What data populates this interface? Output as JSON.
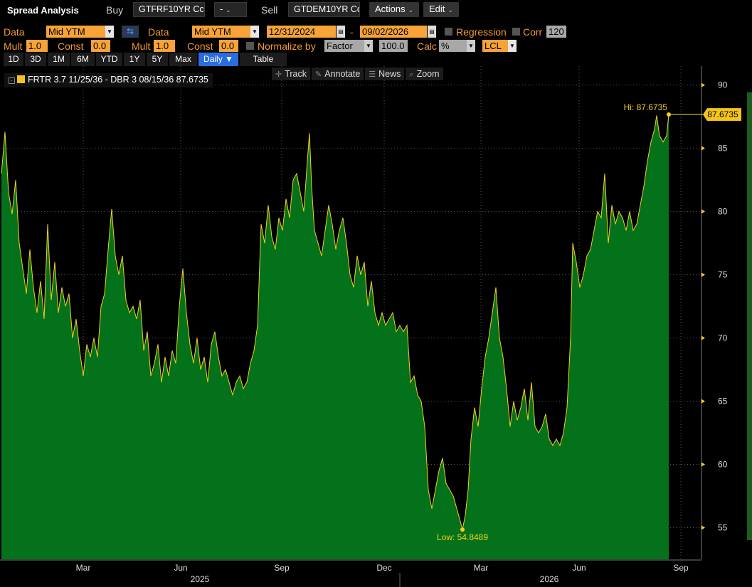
{
  "header": {
    "title": "Spread Analysis",
    "buy_label": "Buy",
    "buy_ticker": "GTFRF10YR Cc",
    "op_value": "-",
    "sell_label": "Sell",
    "sell_ticker": "GTDEM10YR Cc",
    "actions_label": "Actions",
    "edit_label": "Edit"
  },
  "settings": {
    "data_label_1": "Data",
    "data_value_1": "Mid YTM",
    "data_label_2": "Data",
    "data_value_2": "Mid YTM",
    "start_date": "12/31/2024",
    "date_sep": "-",
    "end_date": "09/02/2026",
    "regression_label": "Regression",
    "corr_label": "Corr",
    "corr_value": "120",
    "mult_label_1": "Mult",
    "mult_value_1": "1.0",
    "const_label_1": "Const",
    "const_value_1": "0.0",
    "mult_label_2": "Mult",
    "mult_value_2": "1.0",
    "const_label_2": "Const",
    "const_value_2": "0.0",
    "normalize_label": "Normalize by",
    "normalize_value": "Factor",
    "factor_value": "100.0",
    "calc_label": "Calc",
    "calc_value": "%",
    "lcl_value": "LCL"
  },
  "timeframes": [
    "1D",
    "3D",
    "1M",
    "6M",
    "YTD",
    "1Y",
    "5Y",
    "Max",
    "Daily ▼",
    "Table"
  ],
  "active_timeframe": "Daily ▼",
  "chart_tools": [
    {
      "icon": "crosshair-icon",
      "glyph": "✛",
      "label": "Track"
    },
    {
      "icon": "pencil-icon",
      "glyph": "✎",
      "label": "Annotate"
    },
    {
      "icon": "news-icon",
      "glyph": "☰",
      "label": "News"
    },
    {
      "icon": "zoom-icon",
      "glyph": "⌕",
      "label": "Zoom"
    }
  ],
  "legend": {
    "toggle": "-",
    "text": "FRTR 3.7 11/25/36 - DBR 3 08/15/36 87.6735"
  },
  "colors": {
    "area_fill": "#04721a",
    "line": "#f5d020",
    "accent_orange": "#f7a338",
    "active_tab": "#2a6de0"
  },
  "chart_data": {
    "type": "area",
    "title": "",
    "series": [
      {
        "name": "FRTR 3.7 11/25/36 - DBR 3 08/15/36",
        "last": 87.6735
      }
    ],
    "ylim": [
      52.5,
      91.5
    ],
    "y_ticks": [
      "90",
      "85",
      "80",
      "75",
      "70",
      "65",
      "60",
      "55"
    ],
    "x_month_labels": [
      "Mar",
      "Jun",
      "Sep",
      "Dec",
      "Mar",
      "Jun",
      "Sep"
    ],
    "x_year_labels": [
      "2025",
      "2026"
    ],
    "hi_label": "Hi: 87.6735",
    "low_label": "Low: 54.8489",
    "last_value_label": "87.6735",
    "hi": 87.6735,
    "low": 54.8489,
    "points": [
      [
        0,
        83.0
      ],
      [
        5,
        86.3
      ],
      [
        10,
        81.5
      ],
      [
        15,
        79.8
      ],
      [
        20,
        82.5
      ],
      [
        25,
        77.5
      ],
      [
        30,
        75.5
      ],
      [
        35,
        73.5
      ],
      [
        40,
        77.0
      ],
      [
        45,
        74.0
      ],
      [
        50,
        72.0
      ],
      [
        55,
        74.5
      ],
      [
        60,
        71.5
      ],
      [
        65,
        79.0
      ],
      [
        70,
        73.0
      ],
      [
        75,
        76.0
      ],
      [
        80,
        72.0
      ],
      [
        85,
        74.0
      ],
      [
        90,
        72.5
      ],
      [
        95,
        73.5
      ],
      [
        100,
        70.0
      ],
      [
        105,
        71.5
      ],
      [
        110,
        69.0
      ],
      [
        115,
        67.0
      ],
      [
        120,
        69.5
      ],
      [
        125,
        68.5
      ],
      [
        130,
        70.0
      ],
      [
        135,
        68.5
      ],
      [
        140,
        72.5
      ],
      [
        145,
        73.5
      ],
      [
        150,
        77.0
      ],
      [
        155,
        80.2
      ],
      [
        160,
        76.5
      ],
      [
        165,
        75.0
      ],
      [
        170,
        76.5
      ],
      [
        175,
        73.0
      ],
      [
        180,
        72.0
      ],
      [
        185,
        72.5
      ],
      [
        190,
        71.5
      ],
      [
        195,
        73.0
      ],
      [
        200,
        69.0
      ],
      [
        205,
        70.5
      ],
      [
        210,
        67.0
      ],
      [
        215,
        68.0
      ],
      [
        220,
        69.5
      ],
      [
        225,
        66.5
      ],
      [
        230,
        68.5
      ],
      [
        235,
        67.0
      ],
      [
        240,
        69.0
      ],
      [
        245,
        68.0
      ],
      [
        250,
        72.5
      ],
      [
        255,
        75.5
      ],
      [
        260,
        72.0
      ],
      [
        265,
        69.5
      ],
      [
        270,
        68.0
      ],
      [
        275,
        70.0
      ],
      [
        280,
        67.5
      ],
      [
        285,
        68.5
      ],
      [
        290,
        66.5
      ],
      [
        295,
        69.5
      ],
      [
        300,
        70.5
      ],
      [
        305,
        68.5
      ],
      [
        310,
        67.0
      ],
      [
        315,
        67.5
      ],
      [
        320,
        66.5
      ],
      [
        325,
        65.5
      ],
      [
        330,
        66.5
      ],
      [
        335,
        67.0
      ],
      [
        340,
        66.0
      ],
      [
        345,
        66.5
      ],
      [
        350,
        68.0
      ],
      [
        355,
        69.0
      ],
      [
        360,
        71.0
      ],
      [
        365,
        79.0
      ],
      [
        370,
        77.5
      ],
      [
        375,
        80.5
      ],
      [
        380,
        78.0
      ],
      [
        385,
        77.0
      ],
      [
        390,
        79.5
      ],
      [
        395,
        78.5
      ],
      [
        400,
        81.0
      ],
      [
        405,
        79.5
      ],
      [
        410,
        82.5
      ],
      [
        415,
        83.0
      ],
      [
        420,
        81.5
      ],
      [
        425,
        80.0
      ],
      [
        430,
        84.0
      ],
      [
        433,
        86.2
      ],
      [
        436,
        82.0
      ],
      [
        440,
        78.5
      ],
      [
        445,
        77.5
      ],
      [
        450,
        76.5
      ],
      [
        455,
        78.5
      ],
      [
        460,
        80.5
      ],
      [
        465,
        79.0
      ],
      [
        470,
        77.0
      ],
      [
        475,
        78.5
      ],
      [
        480,
        79.5
      ],
      [
        485,
        77.5
      ],
      [
        490,
        75.0
      ],
      [
        495,
        74.0
      ],
      [
        500,
        76.5
      ],
      [
        505,
        75.0
      ],
      [
        510,
        76.0
      ],
      [
        515,
        72.5
      ],
      [
        520,
        74.5
      ],
      [
        525,
        72.0
      ],
      [
        530,
        71.0
      ],
      [
        535,
        72.0
      ],
      [
        540,
        71.0
      ],
      [
        545,
        71.5
      ],
      [
        550,
        72.0
      ],
      [
        555,
        70.5
      ],
      [
        560,
        71.0
      ],
      [
        565,
        70.5
      ],
      [
        570,
        71.0
      ],
      [
        575,
        66.5
      ],
      [
        580,
        67.0
      ],
      [
        585,
        65.5
      ],
      [
        590,
        65.0
      ],
      [
        595,
        63.0
      ],
      [
        600,
        58.0
      ],
      [
        605,
        56.5
      ],
      [
        610,
        58.0
      ],
      [
        615,
        59.5
      ],
      [
        620,
        60.5
      ],
      [
        625,
        58.5
      ],
      [
        630,
        58.0
      ],
      [
        635,
        57.5
      ],
      [
        640,
        56.5
      ],
      [
        645,
        55.5
      ],
      [
        648,
        54.85
      ],
      [
        652,
        56.0
      ],
      [
        656,
        58.0
      ],
      [
        660,
        62.0
      ],
      [
        665,
        64.5
      ],
      [
        670,
        63.0
      ],
      [
        675,
        66.0
      ],
      [
        680,
        68.5
      ],
      [
        685,
        70.0
      ],
      [
        690,
        72.0
      ],
      [
        695,
        74.0
      ],
      [
        700,
        70.0
      ],
      [
        705,
        68.5
      ],
      [
        710,
        66.0
      ],
      [
        715,
        63.0
      ],
      [
        720,
        65.0
      ],
      [
        725,
        63.5
      ],
      [
        730,
        64.5
      ],
      [
        735,
        66.0
      ],
      [
        740,
        63.5
      ],
      [
        745,
        66.5
      ],
      [
        750,
        63.0
      ],
      [
        755,
        62.5
      ],
      [
        760,
        63.0
      ],
      [
        765,
        64.0
      ],
      [
        770,
        62.0
      ],
      [
        775,
        61.5
      ],
      [
        780,
        62.0
      ],
      [
        785,
        61.5
      ],
      [
        790,
        62.5
      ],
      [
        795,
        64.5
      ],
      [
        800,
        70.0
      ],
      [
        803,
        77.5
      ],
      [
        808,
        76.0
      ],
      [
        813,
        74.0
      ],
      [
        818,
        75.0
      ],
      [
        823,
        76.5
      ],
      [
        828,
        77.0
      ],
      [
        833,
        78.5
      ],
      [
        838,
        80.0
      ],
      [
        843,
        79.5
      ],
      [
        848,
        83.0
      ],
      [
        853,
        77.5
      ],
      [
        858,
        80.5
      ],
      [
        863,
        79.0
      ],
      [
        868,
        80.0
      ],
      [
        873,
        79.5
      ],
      [
        878,
        78.5
      ],
      [
        883,
        80.0
      ],
      [
        888,
        78.5
      ],
      [
        893,
        79.0
      ],
      [
        898,
        80.5
      ],
      [
        903,
        82.0
      ],
      [
        908,
        84.0
      ],
      [
        913,
        85.5
      ],
      [
        918,
        86.5
      ],
      [
        921,
        87.6
      ],
      [
        925,
        86.0
      ],
      [
        930,
        85.5
      ],
      [
        935,
        86.0
      ],
      [
        938,
        87.67
      ]
    ]
  }
}
